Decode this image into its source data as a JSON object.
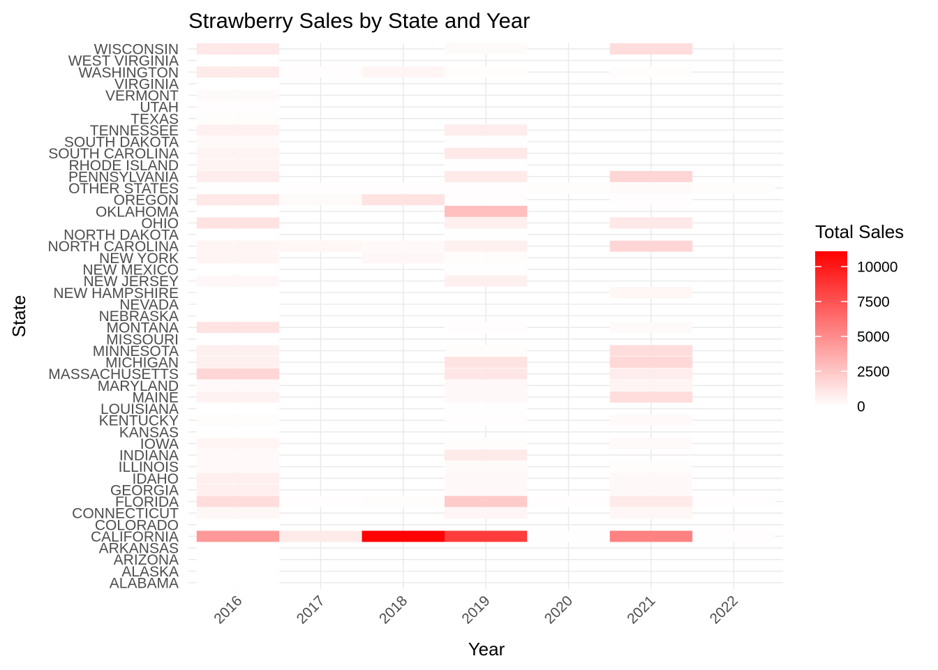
{
  "chart_data": {
    "type": "heatmap",
    "title": "Strawberry Sales by State and Year",
    "xlabel": "Year",
    "ylabel": "State",
    "x": [
      "2016",
      "2017",
      "2018",
      "2019",
      "2020",
      "2021",
      "2022"
    ],
    "y": [
      "ALABAMA",
      "ALASKA",
      "ARIZONA",
      "ARKANSAS",
      "CALIFORNIA",
      "COLORADO",
      "CONNECTICUT",
      "FLORIDA",
      "GEORGIA",
      "IDAHO",
      "ILLINOIS",
      "INDIANA",
      "IOWA",
      "KANSAS",
      "KENTUCKY",
      "LOUISIANA",
      "MAINE",
      "MARYLAND",
      "MASSACHUSETTS",
      "MICHIGAN",
      "MINNESOTA",
      "MISSOURI",
      "MONTANA",
      "NEBRASKA",
      "NEVADA",
      "NEW HAMPSHIRE",
      "NEW JERSEY",
      "NEW MEXICO",
      "NEW YORK",
      "NORTH CAROLINA",
      "NORTH DAKOTA",
      "OHIO",
      "OKLAHOMA",
      "OREGON",
      "OTHER STATES",
      "PENNSYLVANIA",
      "RHODE ISLAND",
      "SOUTH CAROLINA",
      "SOUTH DAKOTA",
      "TENNESSEE",
      "TEXAS",
      "UTAH",
      "VERMONT",
      "VIRGINIA",
      "WASHINGTON",
      "WEST VIRGINIA",
      "WISCONSIN"
    ],
    "cells": [
      {
        "x": "2016",
        "y": "ALABAMA",
        "value": 0
      },
      {
        "x": "2016",
        "y": "ALASKA",
        "value": 0
      },
      {
        "x": "2016",
        "y": "ARIZONA",
        "value": 0
      },
      {
        "x": "2016",
        "y": "ARKANSAS",
        "value": 0
      },
      {
        "x": "2016",
        "y": "CALIFORNIA",
        "value": 4500
      },
      {
        "x": "2016",
        "y": "COLORADO",
        "value": 0
      },
      {
        "x": "2016",
        "y": "CONNECTICUT",
        "value": 400
      },
      {
        "x": "2016",
        "y": "FLORIDA",
        "value": 1500
      },
      {
        "x": "2016",
        "y": "GEORGIA",
        "value": 700
      },
      {
        "x": "2016",
        "y": "IDAHO",
        "value": 700
      },
      {
        "x": "2016",
        "y": "ILLINOIS",
        "value": 250
      },
      {
        "x": "2016",
        "y": "INDIANA",
        "value": 250
      },
      {
        "x": "2016",
        "y": "IOWA",
        "value": 450
      },
      {
        "x": "2016",
        "y": "KANSAS",
        "value": 0
      },
      {
        "x": "2016",
        "y": "KENTUCKY",
        "value": 120
      },
      {
        "x": "2016",
        "y": "LOUISIANA",
        "value": 0
      },
      {
        "x": "2016",
        "y": "MAINE",
        "value": 550
      },
      {
        "x": "2016",
        "y": "MARYLAND",
        "value": 250
      },
      {
        "x": "2016",
        "y": "MASSACHUSETTS",
        "value": 1800
      },
      {
        "x": "2016",
        "y": "MICHIGAN",
        "value": 650
      },
      {
        "x": "2016",
        "y": "MINNESOTA",
        "value": 650
      },
      {
        "x": "2016",
        "y": "MISSOURI",
        "value": 0
      },
      {
        "x": "2016",
        "y": "MONTANA",
        "value": 1200
      },
      {
        "x": "2016",
        "y": "NEBRASKA",
        "value": 0
      },
      {
        "x": "2016",
        "y": "NEVADA",
        "value": 0
      },
      {
        "x": "2016",
        "y": "NEW HAMPSHIRE",
        "value": 0
      },
      {
        "x": "2016",
        "y": "NEW JERSEY",
        "value": 350
      },
      {
        "x": "2016",
        "y": "NEW MEXICO",
        "value": 0
      },
      {
        "x": "2016",
        "y": "NEW YORK",
        "value": 450
      },
      {
        "x": "2016",
        "y": "NORTH CAROLINA",
        "value": 450
      },
      {
        "x": "2016",
        "y": "NORTH DAKOTA",
        "value": 0
      },
      {
        "x": "2016",
        "y": "OHIO",
        "value": 1200
      },
      {
        "x": "2016",
        "y": "OKLAHOMA",
        "value": 0
      },
      {
        "x": "2016",
        "y": "OREGON",
        "value": 1000
      },
      {
        "x": "2016",
        "y": "OTHER STATES",
        "value": 50
      },
      {
        "x": "2016",
        "y": "PENNSYLVANIA",
        "value": 800
      },
      {
        "x": "2016",
        "y": "RHODE ISLAND",
        "value": 500
      },
      {
        "x": "2016",
        "y": "SOUTH CAROLINA",
        "value": 500
      },
      {
        "x": "2016",
        "y": "SOUTH DAKOTA",
        "value": 250
      },
      {
        "x": "2016",
        "y": "TENNESSEE",
        "value": 600
      },
      {
        "x": "2016",
        "y": "TEXAS",
        "value": 150
      },
      {
        "x": "2016",
        "y": "UTAH",
        "value": 100
      },
      {
        "x": "2016",
        "y": "VERMONT",
        "value": 200
      },
      {
        "x": "2016",
        "y": "VIRGINIA",
        "value": 0
      },
      {
        "x": "2016",
        "y": "WASHINGTON",
        "value": 900
      },
      {
        "x": "2016",
        "y": "WEST VIRGINIA",
        "value": 0
      },
      {
        "x": "2016",
        "y": "WISCONSIN",
        "value": 1000
      },
      {
        "x": "2017",
        "y": "CALIFORNIA",
        "value": 900
      },
      {
        "x": "2017",
        "y": "FLORIDA",
        "value": 100
      },
      {
        "x": "2017",
        "y": "NORTH CAROLINA",
        "value": 400
      },
      {
        "x": "2017",
        "y": "OREGON",
        "value": 200
      },
      {
        "x": "2017",
        "y": "OTHER STATES",
        "value": 100
      },
      {
        "x": "2017",
        "y": "WASHINGTON",
        "value": 80
      },
      {
        "x": "2018",
        "y": "CALIFORNIA",
        "value": 11000
      },
      {
        "x": "2018",
        "y": "FLORIDA",
        "value": 120
      },
      {
        "x": "2018",
        "y": "NORTH CAROLINA",
        "value": 250
      },
      {
        "x": "2018",
        "y": "NEW YORK",
        "value": 350
      },
      {
        "x": "2018",
        "y": "OREGON",
        "value": 1200
      },
      {
        "x": "2018",
        "y": "OTHER STATES",
        "value": 100
      },
      {
        "x": "2018",
        "y": "WASHINGTON",
        "value": 450
      },
      {
        "x": "2019",
        "y": "CALIFORNIA",
        "value": 8500
      },
      {
        "x": "2019",
        "y": "CONNECTICUT",
        "value": 450
      },
      {
        "x": "2019",
        "y": "FLORIDA",
        "value": 2300
      },
      {
        "x": "2019",
        "y": "GEORGIA",
        "value": 300
      },
      {
        "x": "2019",
        "y": "IDAHO",
        "value": 300
      },
      {
        "x": "2019",
        "y": "ILLINOIS",
        "value": 200
      },
      {
        "x": "2019",
        "y": "INDIANA",
        "value": 900
      },
      {
        "x": "2019",
        "y": "IOWA",
        "value": 150
      },
      {
        "x": "2019",
        "y": "KENTUCKY",
        "value": 100
      },
      {
        "x": "2019",
        "y": "LOUISIANA",
        "value": 50
      },
      {
        "x": "2019",
        "y": "MAINE",
        "value": 300
      },
      {
        "x": "2019",
        "y": "MARYLAND",
        "value": 300
      },
      {
        "x": "2019",
        "y": "MASSACHUSETTS",
        "value": 1100
      },
      {
        "x": "2019",
        "y": "MICHIGAN",
        "value": 1200
      },
      {
        "x": "2019",
        "y": "MINNESOTA",
        "value": 150
      },
      {
        "x": "2019",
        "y": "MONTANA",
        "value": 100
      },
      {
        "x": "2019",
        "y": "NEW JERSEY",
        "value": 650
      },
      {
        "x": "2019",
        "y": "NEW MEXICO",
        "value": 50
      },
      {
        "x": "2019",
        "y": "NEW YORK",
        "value": 150
      },
      {
        "x": "2019",
        "y": "NORTH CAROLINA",
        "value": 650
      },
      {
        "x": "2019",
        "y": "NORTH DAKOTA",
        "value": 50
      },
      {
        "x": "2019",
        "y": "OHIO",
        "value": 700
      },
      {
        "x": "2019",
        "y": "OKLAHOMA",
        "value": 2800
      },
      {
        "x": "2019",
        "y": "OREGON",
        "value": 100
      },
      {
        "x": "2019",
        "y": "OTHER STATES",
        "value": 100
      },
      {
        "x": "2019",
        "y": "PENNSYLVANIA",
        "value": 900
      },
      {
        "x": "2019",
        "y": "RHODE ISLAND",
        "value": 50
      },
      {
        "x": "2019",
        "y": "SOUTH CAROLINA",
        "value": 1000
      },
      {
        "x": "2019",
        "y": "SOUTH DAKOTA",
        "value": 50
      },
      {
        "x": "2019",
        "y": "TENNESSEE",
        "value": 800
      },
      {
        "x": "2019",
        "y": "WASHINGTON",
        "value": 150
      },
      {
        "x": "2019",
        "y": "WISCONSIN",
        "value": 200
      },
      {
        "x": "2020",
        "y": "CALIFORNIA",
        "value": 50
      },
      {
        "x": "2020",
        "y": "FLORIDA",
        "value": 80
      },
      {
        "x": "2020",
        "y": "OTHER STATES",
        "value": 150
      },
      {
        "x": "2021",
        "y": "CALIFORNIA",
        "value": 5500
      },
      {
        "x": "2021",
        "y": "CONNECTICUT",
        "value": 400
      },
      {
        "x": "2021",
        "y": "FLORIDA",
        "value": 900
      },
      {
        "x": "2021",
        "y": "GEORGIA",
        "value": 300
      },
      {
        "x": "2021",
        "y": "IDAHO",
        "value": 300
      },
      {
        "x": "2021",
        "y": "ILLINOIS",
        "value": 150
      },
      {
        "x": "2021",
        "y": "IOWA",
        "value": 200
      },
      {
        "x": "2021",
        "y": "KENTUCKY",
        "value": 250
      },
      {
        "x": "2021",
        "y": "MAINE",
        "value": 1500
      },
      {
        "x": "2021",
        "y": "MARYLAND",
        "value": 500
      },
      {
        "x": "2021",
        "y": "MASSACHUSETTS",
        "value": 800
      },
      {
        "x": "2021",
        "y": "MICHIGAN",
        "value": 1700
      },
      {
        "x": "2021",
        "y": "MINNESOTA",
        "value": 1500
      },
      {
        "x": "2021",
        "y": "MONTANA",
        "value": 200
      },
      {
        "x": "2021",
        "y": "NEW HAMPSHIRE",
        "value": 400
      },
      {
        "x": "2021",
        "y": "NORTH CAROLINA",
        "value": 1800
      },
      {
        "x": "2021",
        "y": "OHIO",
        "value": 1000
      },
      {
        "x": "2021",
        "y": "OREGON",
        "value": 100
      },
      {
        "x": "2021",
        "y": "OTHER STATES",
        "value": 200
      },
      {
        "x": "2021",
        "y": "PENNSYLVANIA",
        "value": 1800
      },
      {
        "x": "2021",
        "y": "WASHINGTON",
        "value": 150
      },
      {
        "x": "2021",
        "y": "WISCONSIN",
        "value": 1500
      },
      {
        "x": "2022",
        "y": "CALIFORNIA",
        "value": 100
      },
      {
        "x": "2022",
        "y": "FLORIDA",
        "value": 100
      },
      {
        "x": "2022",
        "y": "OTHER STATES",
        "value": 150
      }
    ],
    "legend": {
      "title": "Total Sales",
      "ticks": [
        0,
        2500,
        5000,
        7500,
        10000
      ],
      "range": [
        0,
        11100
      ],
      "low_color": "#FFFFFF",
      "high_color": "#FF0000",
      "placement": "right"
    },
    "grid": true
  }
}
